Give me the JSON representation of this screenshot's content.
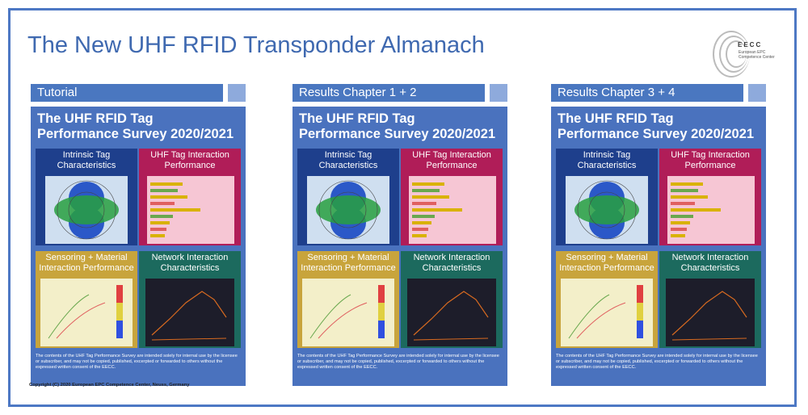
{
  "slide": {
    "title": "The New UHF RFID Transponder Almanach",
    "copyright": "Copyright (C) 2020 European EPC Competence Center, Neuss, Germany"
  },
  "logo": {
    "name": "EECC",
    "subtitle": "European EPC Competence Center"
  },
  "colors": {
    "accent": "#4a77c0",
    "frame": "#4d78c4",
    "title": "#3f69b0",
    "quad_intrinsic": "#1e3f8c",
    "quad_interaction": "#b01d58",
    "quad_sensoring": "#c8a43c",
    "quad_network": "#1c6a5e"
  },
  "panels": [
    {
      "header": "Tutorial",
      "cover_title_line1": "The UHF RFID Tag",
      "cover_title_line2": "Performance Survey 2020/2021",
      "quadrants": [
        "Intrinsic Tag Characteristics",
        "UHF Tag Interaction Performance",
        "Sensoring + Material Interaction Performance",
        "Network Interaction Characteristics"
      ],
      "legal": "The contents of the UHF Tag Performance Survey are intended solely for internal use by the licensee or subscriber, and may not be copied, published, excerpted or forwarded to others without the expressed written consent of the EECC."
    },
    {
      "header": "Results Chapter 1 + 2",
      "cover_title_line1": "The UHF RFID Tag",
      "cover_title_line2": "Performance Survey 2020/2021",
      "quadrants": [
        "Intrinsic Tag Characteristics",
        "UHF Tag Interaction Performance",
        "Sensoring + Material Interaction Performance",
        "Network Interaction Characteristics"
      ],
      "legal": "The contents of the UHF Tag Performance Survey are intended solely for internal use by the licensee or subscriber, and may not be copied, published, excerpted or forwarded to others without the expressed written consent of the EECC."
    },
    {
      "header": "Results Chapter 3 + 4",
      "cover_title_line1": "The UHF RFID Tag",
      "cover_title_line2": "Performance Survey 2020/2021",
      "quadrants": [
        "Intrinsic Tag Characteristics",
        "UHF Tag Interaction Performance",
        "Sensoring + Material Interaction Performance",
        "Network Interaction Characteristics"
      ],
      "legal": "The contents of the UHF Tag Performance Survey are intended solely for internal use by the licensee or subscriber, and may not be copied, published, excerpted or forwarded to others without the expressed written consent of the EECC."
    }
  ]
}
